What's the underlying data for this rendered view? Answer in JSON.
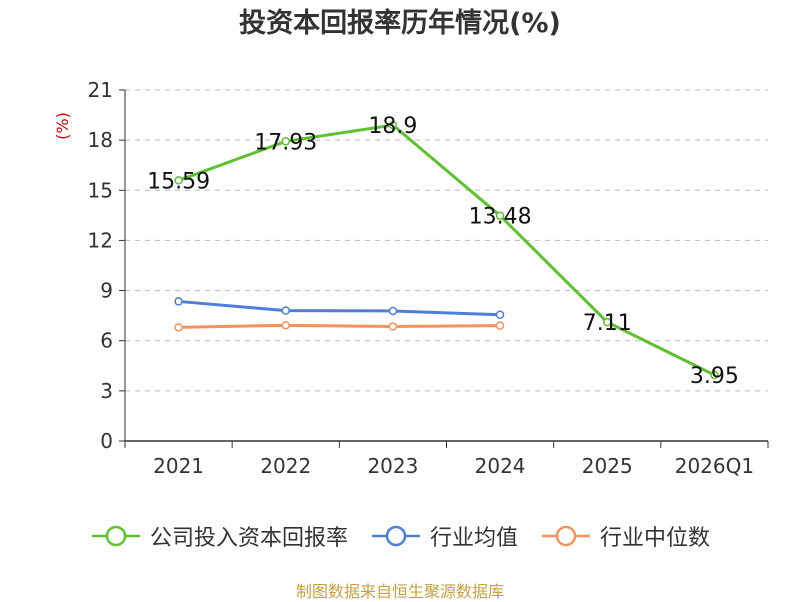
{
  "chart_data": {
    "type": "line",
    "title": "投资本回报率历年情况(%)",
    "ylabel": "(%)",
    "categories": [
      "2021",
      "2022",
      "2023",
      "2024",
      "2025",
      "2026Q1"
    ],
    "yticks": [
      "0",
      "3",
      "6",
      "9",
      "12",
      "15",
      "18",
      "21"
    ],
    "ylim": [
      0,
      21
    ],
    "grid": true,
    "legend_position": "bottom",
    "series": [
      {
        "name": "公司投入资本回报率",
        "color": "#5cc22e",
        "values": [
          15.59,
          17.93,
          18.9,
          13.48,
          7.11,
          3.95
        ],
        "labels": [
          "15.59",
          "17.93",
          "18.9",
          "13.48",
          "7.11",
          "3.95"
        ]
      },
      {
        "name": "行业均值",
        "color": "#4f7ed8",
        "values": [
          8.35,
          7.8,
          7.78,
          7.55,
          null,
          null
        ]
      },
      {
        "name": "行业中位数",
        "color": "#f5925a",
        "values": [
          6.8,
          6.92,
          6.85,
          6.9,
          null,
          null
        ]
      }
    ]
  },
  "source_note": "制图数据来自恒生聚源数据库"
}
